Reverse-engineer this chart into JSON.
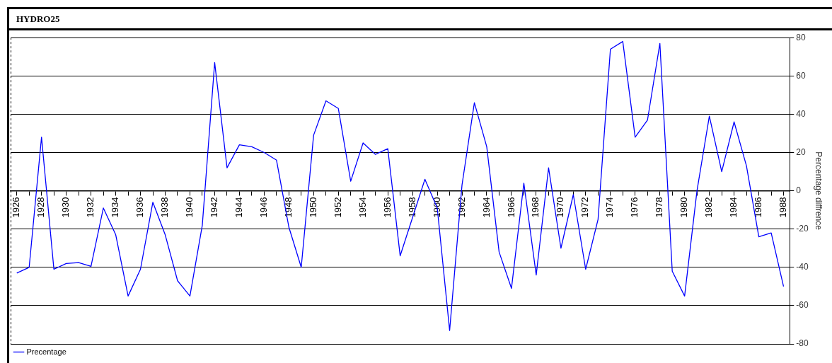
{
  "chart_data": {
    "type": "line",
    "title": "HYDRO25",
    "ylabel": "Percentage diffrence",
    "categories": [
      "1926",
      null,
      "1928",
      null,
      "1930",
      null,
      "1932",
      null,
      "1934",
      null,
      "1936",
      null,
      "1938",
      null,
      "1940",
      null,
      "1942",
      null,
      "1944",
      null,
      "1946",
      null,
      "1948",
      null,
      "1950",
      null,
      "1952",
      null,
      "1954",
      null,
      "1956",
      null,
      "1958",
      null,
      "1960",
      null,
      "1962",
      null,
      "1964",
      null,
      "1966",
      null,
      "1968",
      null,
      "1970",
      null,
      "1972",
      null,
      "1974",
      null,
      "1976",
      null,
      "1978",
      null,
      "1980",
      null,
      "1982",
      null,
      "1984",
      null,
      "1986",
      null,
      "1988"
    ],
    "series": [
      {
        "name": "Precentage",
        "color": "#0000ff",
        "values": [
          -43,
          -40,
          28,
          -41,
          -38,
          -37.5,
          -39.5,
          -9,
          -23,
          -55,
          -41,
          -6,
          -23,
          -47,
          -55,
          -18,
          67,
          12,
          24,
          23,
          20,
          16,
          -19,
          -40,
          29,
          47,
          43,
          5,
          25,
          19,
          22,
          -34,
          -14,
          6,
          -9,
          -73,
          3,
          46,
          23,
          -32,
          -51,
          4,
          -44,
          12,
          -30,
          -2,
          -41,
          -15,
          74,
          78,
          28,
          37,
          77,
          -42,
          -55,
          0,
          39,
          10,
          36,
          13,
          -24,
          -22,
          -50
        ]
      }
    ],
    "ylim": [
      -80,
      80
    ],
    "yticks": [
      -80,
      -60,
      -40,
      -20,
      0,
      20,
      40,
      60,
      80
    ],
    "grid": "y",
    "legend": "bottom left",
    "marker": "none",
    "line_style": "solid"
  }
}
